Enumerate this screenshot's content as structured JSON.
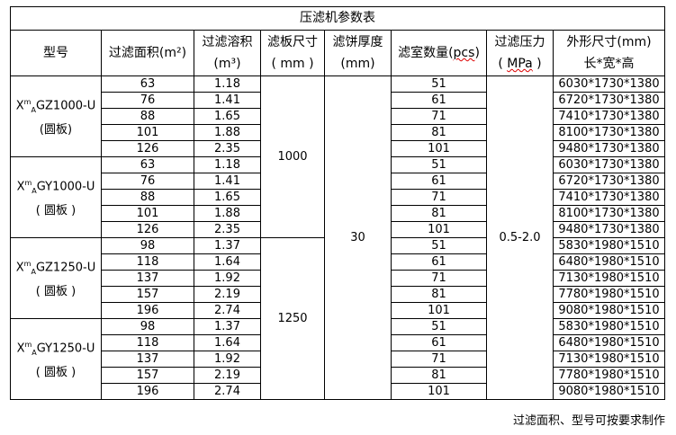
{
  "title": "压滤机参数表",
  "headers": {
    "model": "型号",
    "area": "过滤面积(m²)",
    "volume_l1": "过滤溶积",
    "volume_l2": "(m³)",
    "plate_l1": "滤板尺寸",
    "plate_l2": "( mm )",
    "cake_l1": "滤饼厚度",
    "cake_l2": "(mm)",
    "chambers_a": "滤室数量(",
    "chambers_b": "pcs",
    ")": ")",
    "pressure_l1": "过滤压力",
    "pressure_a": "( ",
    "pressure_b": "MPa",
    "pressure_c": " )",
    "dims_l1": "外形尺寸(mm)",
    "dims_l2": "长*宽*高"
  },
  "groups": [
    {
      "model_a": "X",
      "model_sup": "m",
      "model_sub": "A",
      "model_b": "GZ1000-U",
      "model_l2": "(圆板)"
    },
    {
      "model_a": "X",
      "model_sup": "m",
      "model_sub": "A",
      "model_b": "GY1000-U",
      "model_l2": "( 圆板 )"
    },
    {
      "model_a": "X",
      "model_sup": "m",
      "model_sub": "A",
      "model_b": "GZ1250-U",
      "model_l2": "( 圆板 )"
    },
    {
      "model_a": "X",
      "model_sup": "m",
      "model_sub": "A",
      "model_b": "GY1250-U",
      "model_l2": "( 圆板 )"
    }
  ],
  "plate_sizes": [
    "1000",
    "1250"
  ],
  "cake_thickness": "30",
  "pressure": "0.5-2.0",
  "rows": [
    [
      "63",
      "1.18",
      "51",
      "6030*1730*1380"
    ],
    [
      "76",
      "1.41",
      "61",
      "6720*1730*1380"
    ],
    [
      "88",
      "1.65",
      "71",
      "7410*1730*1380"
    ],
    [
      "101",
      "1.88",
      "81",
      "8100*1730*1380"
    ],
    [
      "126",
      "2.35",
      "101",
      "9480*1730*1380"
    ],
    [
      "63",
      "1.18",
      "51",
      "6030*1730*1380"
    ],
    [
      "76",
      "1.41",
      "61",
      "6720*1730*1380"
    ],
    [
      "88",
      "1.65",
      "71",
      "7410*1730*1380"
    ],
    [
      "101",
      "1.88",
      "81",
      "8100*1730*1380"
    ],
    [
      "126",
      "2.35",
      "101",
      "9480*1730*1380"
    ],
    [
      "98",
      "1.37",
      "51",
      "5830*1980*1510"
    ],
    [
      "118",
      "1.64",
      "61",
      "6480*1980*1510"
    ],
    [
      "137",
      "1.92",
      "71",
      "7130*1980*1510"
    ],
    [
      "157",
      "2.19",
      "81",
      "7780*1980*1510"
    ],
    [
      "196",
      "2.74",
      "101",
      "9080*1980*1510"
    ],
    [
      "98",
      "1.37",
      "51",
      "5830*1980*1510"
    ],
    [
      "118",
      "1.64",
      "61",
      "6480*1980*1510"
    ],
    [
      "137",
      "1.92",
      "71",
      "7130*1980*1510"
    ],
    [
      "157",
      "2.19",
      "81",
      "7780*1980*1510"
    ],
    [
      "196",
      "2.74",
      "101",
      "9080*1980*1510"
    ]
  ],
  "note": "过滤面积、型号可按要求制作"
}
